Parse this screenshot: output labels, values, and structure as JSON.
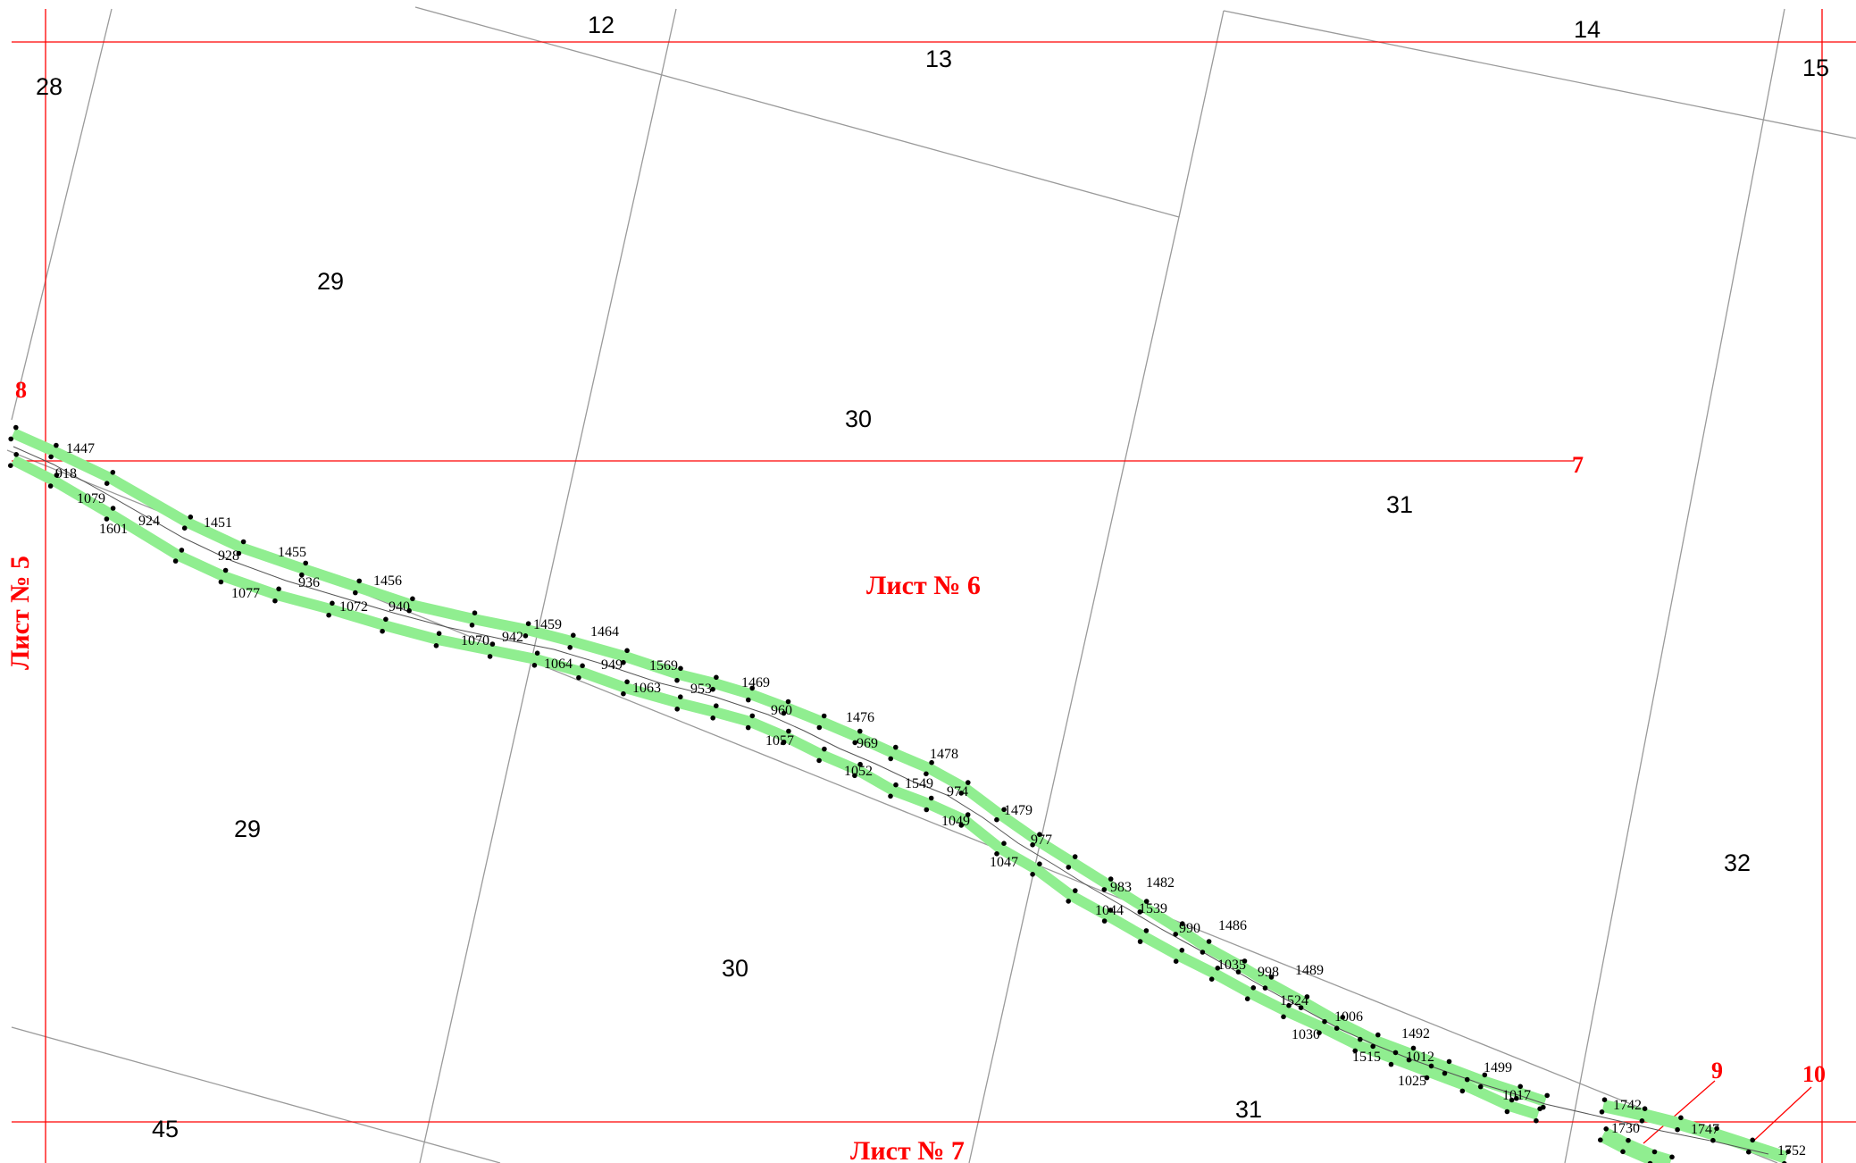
{
  "colors": {
    "frame": "#ff0000",
    "grid": "#9a9a9a",
    "strip": "#90ee90",
    "points": "#000000",
    "labels": "#000000",
    "sheet_labels": "#ff0000"
  },
  "sheets": {
    "current": "Лист № 6",
    "left": "Лист № 5",
    "bottom": "Лист № 7"
  },
  "corner_numbers": [
    "8",
    "7",
    "9",
    "10"
  ],
  "blocks": [
    "12",
    "13",
    "14",
    "15",
    "28",
    "29",
    "30",
    "31",
    "29",
    "30",
    "31",
    "32",
    "45"
  ],
  "points": [
    "1447",
    "918",
    "1079",
    "1601",
    "924",
    "1451",
    "928",
    "1455",
    "1077",
    "936",
    "1456",
    "1072",
    "940",
    "1459",
    "1070",
    "942",
    "1064",
    "1464",
    "949",
    "1569",
    "1063",
    "953",
    "1469",
    "960",
    "1057",
    "1476",
    "969",
    "1052",
    "1478",
    "1549",
    "974",
    "1049",
    "1479",
    "977",
    "1047",
    "1482",
    "983",
    "1044",
    "1539",
    "990",
    "1486",
    "1035",
    "998",
    "1489",
    "1524",
    "1030",
    "1006",
    "1492",
    "1515",
    "1012",
    "1025",
    "1499",
    "1017",
    "1742",
    "1730",
    "1747",
    "1752"
  ]
}
